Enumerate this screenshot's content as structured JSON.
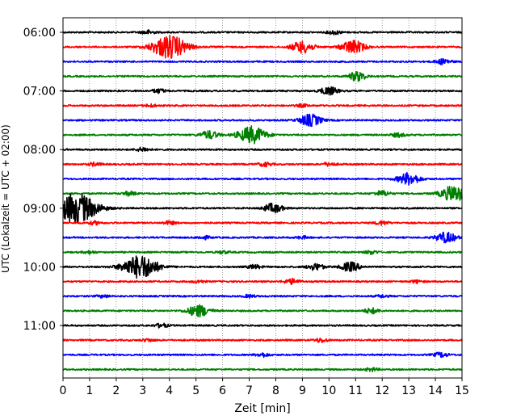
{
  "chart_data": {
    "type": "line",
    "subtype": "helicorder",
    "xlabel": "Zeit  [min]",
    "ylabel": "UTC (Lokalzeit = UTC + 02:00)",
    "xlim": [
      0,
      15
    ],
    "x_ticks": [
      0,
      1,
      2,
      3,
      4,
      5,
      6,
      7,
      8,
      9,
      10,
      11,
      12,
      13,
      14,
      15
    ],
    "x_tick_labels": [
      "0",
      "1",
      "2",
      "3",
      "4",
      "5",
      "6",
      "7",
      "8",
      "9",
      "10",
      "11",
      "12",
      "13",
      "14",
      "15"
    ],
    "y_tick_labels": [
      "06:00",
      "07:00",
      "08:00",
      "09:00",
      "10:00",
      "11:00"
    ],
    "y_ticks_row_index": [
      0,
      4,
      8,
      12,
      16,
      20
    ],
    "row_interval_minutes": 15,
    "grid": "vertical dotted at each minute",
    "row_colors": [
      "#000000",
      "#ff0000",
      "#0000ff",
      "#008000"
    ],
    "rows": [
      {
        "start": "06:00",
        "color": "black",
        "events": [
          {
            "t": 3.2,
            "amp": 0.3
          },
          {
            "t": 10.2,
            "amp": 0.3
          }
        ]
      },
      {
        "start": "06:15",
        "color": "red",
        "events": [
          {
            "t": 4.0,
            "amp": 1.8
          },
          {
            "t": 9.0,
            "amp": 0.9
          },
          {
            "t": 10.9,
            "amp": 1.0
          }
        ]
      },
      {
        "start": "06:30",
        "color": "blue",
        "events": [
          {
            "t": 14.3,
            "amp": 0.4
          }
        ]
      },
      {
        "start": "06:45",
        "color": "green",
        "events": [
          {
            "t": 11.0,
            "amp": 0.3
          },
          {
            "t": 11.1,
            "amp": 0.5
          }
        ]
      },
      {
        "start": "07:00",
        "color": "black",
        "events": [
          {
            "t": 3.6,
            "amp": 0.3
          },
          {
            "t": 10.0,
            "amp": 0.6
          }
        ]
      },
      {
        "start": "07:15",
        "color": "red",
        "events": [
          {
            "t": 3.3,
            "amp": 0.2
          },
          {
            "t": 9.0,
            "amp": 0.2
          }
        ]
      },
      {
        "start": "07:30",
        "color": "blue",
        "events": [
          {
            "t": 9.3,
            "amp": 0.9
          }
        ]
      },
      {
        "start": "07:45",
        "color": "green",
        "events": [
          {
            "t": 5.5,
            "amp": 0.6
          },
          {
            "t": 7.1,
            "amp": 1.3
          },
          {
            "t": 12.6,
            "amp": 0.3
          }
        ]
      },
      {
        "start": "08:00",
        "color": "black",
        "events": [
          {
            "t": 3.0,
            "amp": 0.3
          }
        ]
      },
      {
        "start": "08:15",
        "color": "red",
        "events": [
          {
            "t": 1.2,
            "amp": 0.25
          },
          {
            "t": 7.6,
            "amp": 0.3
          },
          {
            "t": 10.0,
            "amp": 0.25
          }
        ]
      },
      {
        "start": "08:30",
        "color": "blue",
        "events": [
          {
            "t": 13.0,
            "amp": 0.9
          }
        ]
      },
      {
        "start": "08:45",
        "color": "green",
        "events": [
          {
            "t": 2.5,
            "amp": 0.3
          },
          {
            "t": 12.0,
            "amp": 0.4
          },
          {
            "t": 14.7,
            "amp": 1.2
          }
        ]
      },
      {
        "start": "09:00",
        "color": "black",
        "events": [
          {
            "t": 0.5,
            "amp": 2.3
          },
          {
            "t": 7.9,
            "amp": 0.7
          }
        ]
      },
      {
        "start": "09:15",
        "color": "red",
        "events": [
          {
            "t": 1.2,
            "amp": 0.25
          },
          {
            "t": 4.0,
            "amp": 0.25
          },
          {
            "t": 12.0,
            "amp": 0.3
          }
        ]
      },
      {
        "start": "09:30",
        "color": "blue",
        "events": [
          {
            "t": 5.3,
            "amp": 0.25
          },
          {
            "t": 9.0,
            "amp": 0.2
          },
          {
            "t": 14.4,
            "amp": 0.8
          }
        ]
      },
      {
        "start": "09:45",
        "color": "green",
        "events": [
          {
            "t": 1.0,
            "amp": 0.2
          },
          {
            "t": 6.0,
            "amp": 0.2
          },
          {
            "t": 11.6,
            "amp": 0.25
          }
        ]
      },
      {
        "start": "10:00",
        "color": "black",
        "events": [
          {
            "t": 2.9,
            "amp": 1.8
          },
          {
            "t": 7.2,
            "amp": 0.3
          },
          {
            "t": 9.5,
            "amp": 0.5
          },
          {
            "t": 10.8,
            "amp": 0.7
          }
        ]
      },
      {
        "start": "10:15",
        "color": "red",
        "events": [
          {
            "t": 5.1,
            "amp": 0.2
          },
          {
            "t": 8.6,
            "amp": 0.4
          },
          {
            "t": 13.3,
            "amp": 0.2
          }
        ]
      },
      {
        "start": "10:30",
        "color": "blue",
        "events": [
          {
            "t": 1.5,
            "amp": 0.2
          },
          {
            "t": 7.0,
            "amp": 0.2
          },
          {
            "t": 12.0,
            "amp": 0.2
          }
        ]
      },
      {
        "start": "10:45",
        "color": "green",
        "events": [
          {
            "t": 5.1,
            "amp": 0.9
          },
          {
            "t": 11.6,
            "amp": 0.4
          }
        ]
      },
      {
        "start": "11:00",
        "color": "black",
        "events": [
          {
            "t": 3.7,
            "amp": 0.3
          }
        ]
      },
      {
        "start": "11:15",
        "color": "red",
        "events": [
          {
            "t": 3.2,
            "amp": 0.2
          },
          {
            "t": 9.7,
            "amp": 0.3
          }
        ]
      },
      {
        "start": "11:30",
        "color": "blue",
        "events": [
          {
            "t": 7.5,
            "amp": 0.3
          },
          {
            "t": 14.2,
            "amp": 0.35
          }
        ]
      },
      {
        "start": "11:45",
        "color": "green",
        "events": [
          {
            "t": 11.6,
            "amp": 0.25
          }
        ]
      }
    ]
  }
}
